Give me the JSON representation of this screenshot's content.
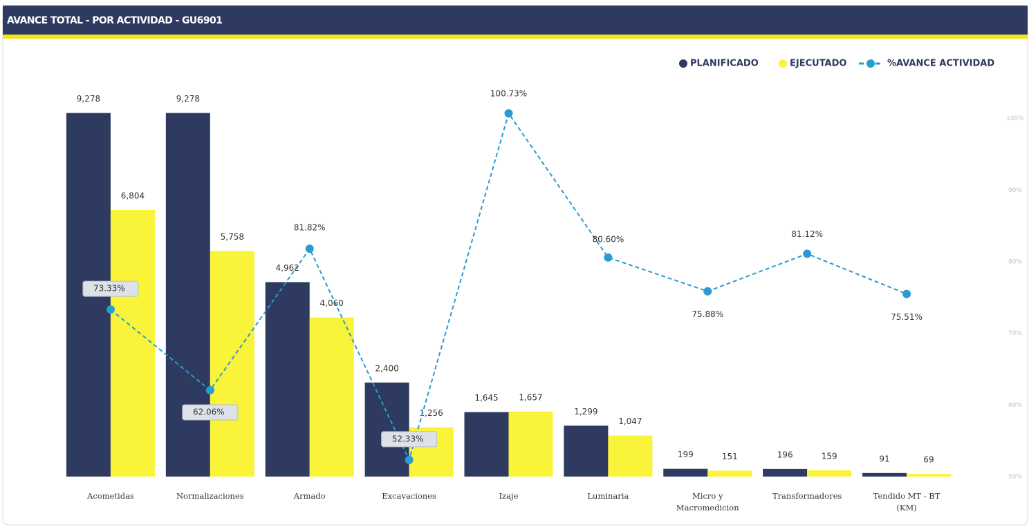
{
  "chart_data": {
    "type": "bar",
    "title": "AVANCE TOTAL - POR ACTIVIDAD - GU6901",
    "categories": [
      "Acometidas",
      "Normalizaciones",
      "Armado",
      "Excavaciones",
      "Izaje",
      "Luminaria",
      "Micro y Macromedicion",
      "Transformadores",
      "Tendido MT - BT (KM)"
    ],
    "series": [
      {
        "name": "PLANIFICADO",
        "type": "bar",
        "color": "#2e3a5f",
        "values": [
          9278,
          9278,
          4962,
          2400,
          1645,
          1299,
          199,
          196,
          91
        ],
        "value_labels": [
          "9,278",
          "9,278",
          "4,962",
          "2,400",
          "1,645",
          "1,299",
          "199",
          "196",
          "91"
        ]
      },
      {
        "name": "EJECUTADO",
        "type": "bar",
        "color": "#f9f33a",
        "values": [
          6804,
          5758,
          4060,
          1256,
          1657,
          1047,
          151,
          159,
          69
        ],
        "value_labels": [
          "6,804",
          "5,758",
          "4,060",
          "1,256",
          "1,657",
          "1,047",
          "151",
          "159",
          "69"
        ]
      },
      {
        "name": "%AVANCE ACTIVIDAD",
        "type": "line",
        "axis": "y2",
        "color": "#2a9ad3",
        "values": [
          73.33,
          62.06,
          81.82,
          52.33,
          100.73,
          80.6,
          75.88,
          81.12,
          75.51
        ],
        "value_labels": [
          "73.33%",
          "62.06%",
          "81.82%",
          "52.33%",
          "100.73%",
          "80.60%",
          "75.88%",
          "81.12%",
          "75.51%"
        ]
      }
    ],
    "ylim": [
      0,
      9500
    ],
    "y2lim": [
      50,
      102
    ],
    "y2ticks": [
      {
        "value": 50,
        "label": "50%"
      },
      {
        "value": 60,
        "label": "60%"
      },
      {
        "value": 70,
        "label": "70%"
      },
      {
        "value": 80,
        "label": "80%"
      },
      {
        "value": 90,
        "label": "90%"
      },
      {
        "value": 100,
        "label": "100%"
      }
    ],
    "legend": "top-right"
  }
}
